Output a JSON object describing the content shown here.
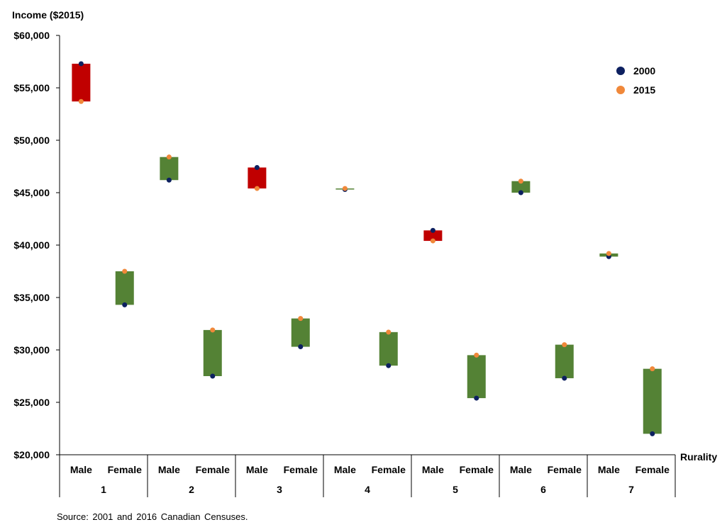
{
  "chart_data": {
    "type": "range-bar",
    "ylabel": "Income ($2015)",
    "xlabel": "Rurality",
    "ylim": [
      20000,
      60000
    ],
    "yticks": [
      20000,
      25000,
      30000,
      35000,
      40000,
      45000,
      50000,
      55000,
      60000
    ],
    "ytick_labels": [
      "$20,000",
      "$25,000",
      "$30,000",
      "$35,000",
      "$40,000",
      "$45,000",
      "$50,000",
      "$55,000",
      "$60,000"
    ],
    "series": [
      {
        "name": "2000",
        "color": "#0d2060"
      },
      {
        "name": "2015",
        "color": "#f0883a"
      }
    ],
    "bar_colors": {
      "decrease": "#c00000",
      "increase": "#548235"
    },
    "groups": [
      {
        "label": "1",
        "bars": [
          {
            "sex": "Male",
            "y2000": 57300,
            "y2015": 53700
          },
          {
            "sex": "Female",
            "y2000": 34300,
            "y2015": 37500
          }
        ]
      },
      {
        "label": "2",
        "bars": [
          {
            "sex": "Male",
            "y2000": 46200,
            "y2015": 48400
          },
          {
            "sex": "Female",
            "y2000": 27500,
            "y2015": 31900
          }
        ]
      },
      {
        "label": "3",
        "bars": [
          {
            "sex": "Male",
            "y2000": 47400,
            "y2015": 45400
          },
          {
            "sex": "Female",
            "y2000": 30300,
            "y2015": 33000
          }
        ]
      },
      {
        "label": "4",
        "bars": [
          {
            "sex": "Male",
            "y2000": 45300,
            "y2015": 45400
          },
          {
            "sex": "Female",
            "y2000": 28500,
            "y2015": 31700
          }
        ]
      },
      {
        "label": "5",
        "bars": [
          {
            "sex": "Male",
            "y2000": 41400,
            "y2015": 40400
          },
          {
            "sex": "Female",
            "y2000": 25400,
            "y2015": 29500
          }
        ]
      },
      {
        "label": "6",
        "bars": [
          {
            "sex": "Male",
            "y2000": 45000,
            "y2015": 46100
          },
          {
            "sex": "Female",
            "y2000": 27300,
            "y2015": 30500
          }
        ]
      },
      {
        "label": "7",
        "bars": [
          {
            "sex": "Male",
            "y2000": 38900,
            "y2015": 39200
          },
          {
            "sex": "Female",
            "y2000": 22000,
            "y2015": 28200
          }
        ]
      }
    ],
    "legend_position": "top-right",
    "grid": false
  },
  "source": "Source: 2001 and 2016 Canadian Censuses."
}
